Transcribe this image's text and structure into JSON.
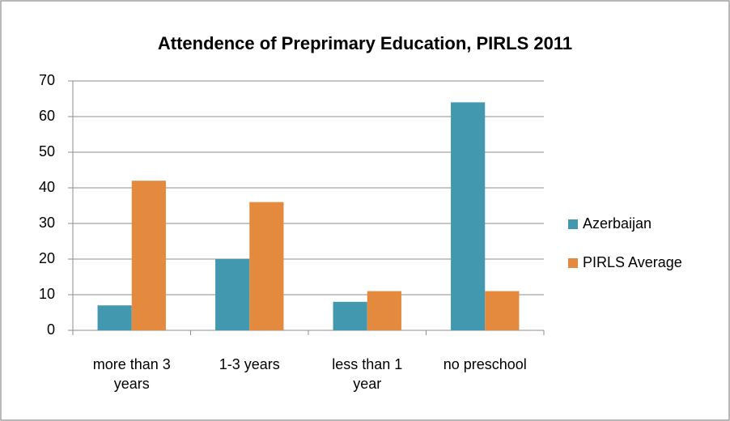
{
  "chart_data": {
    "type": "bar",
    "title": "Attendence of Preprimary Education, PIRLS 2011",
    "categories": [
      "more than 3 years",
      "1-3 years",
      "less than 1 year",
      "no preschool"
    ],
    "series": [
      {
        "name": "Azerbaijan",
        "color": "#4198af",
        "values": [
          7,
          20,
          8,
          64
        ]
      },
      {
        "name": "PIRLS Average",
        "color": "#e38a3f",
        "values": [
          42,
          36,
          11,
          11
        ]
      }
    ],
    "ylim": [
      0,
      70
    ],
    "yticks": [
      0,
      10,
      20,
      30,
      40,
      50,
      60,
      70
    ],
    "grid": true,
    "legend": "right"
  }
}
